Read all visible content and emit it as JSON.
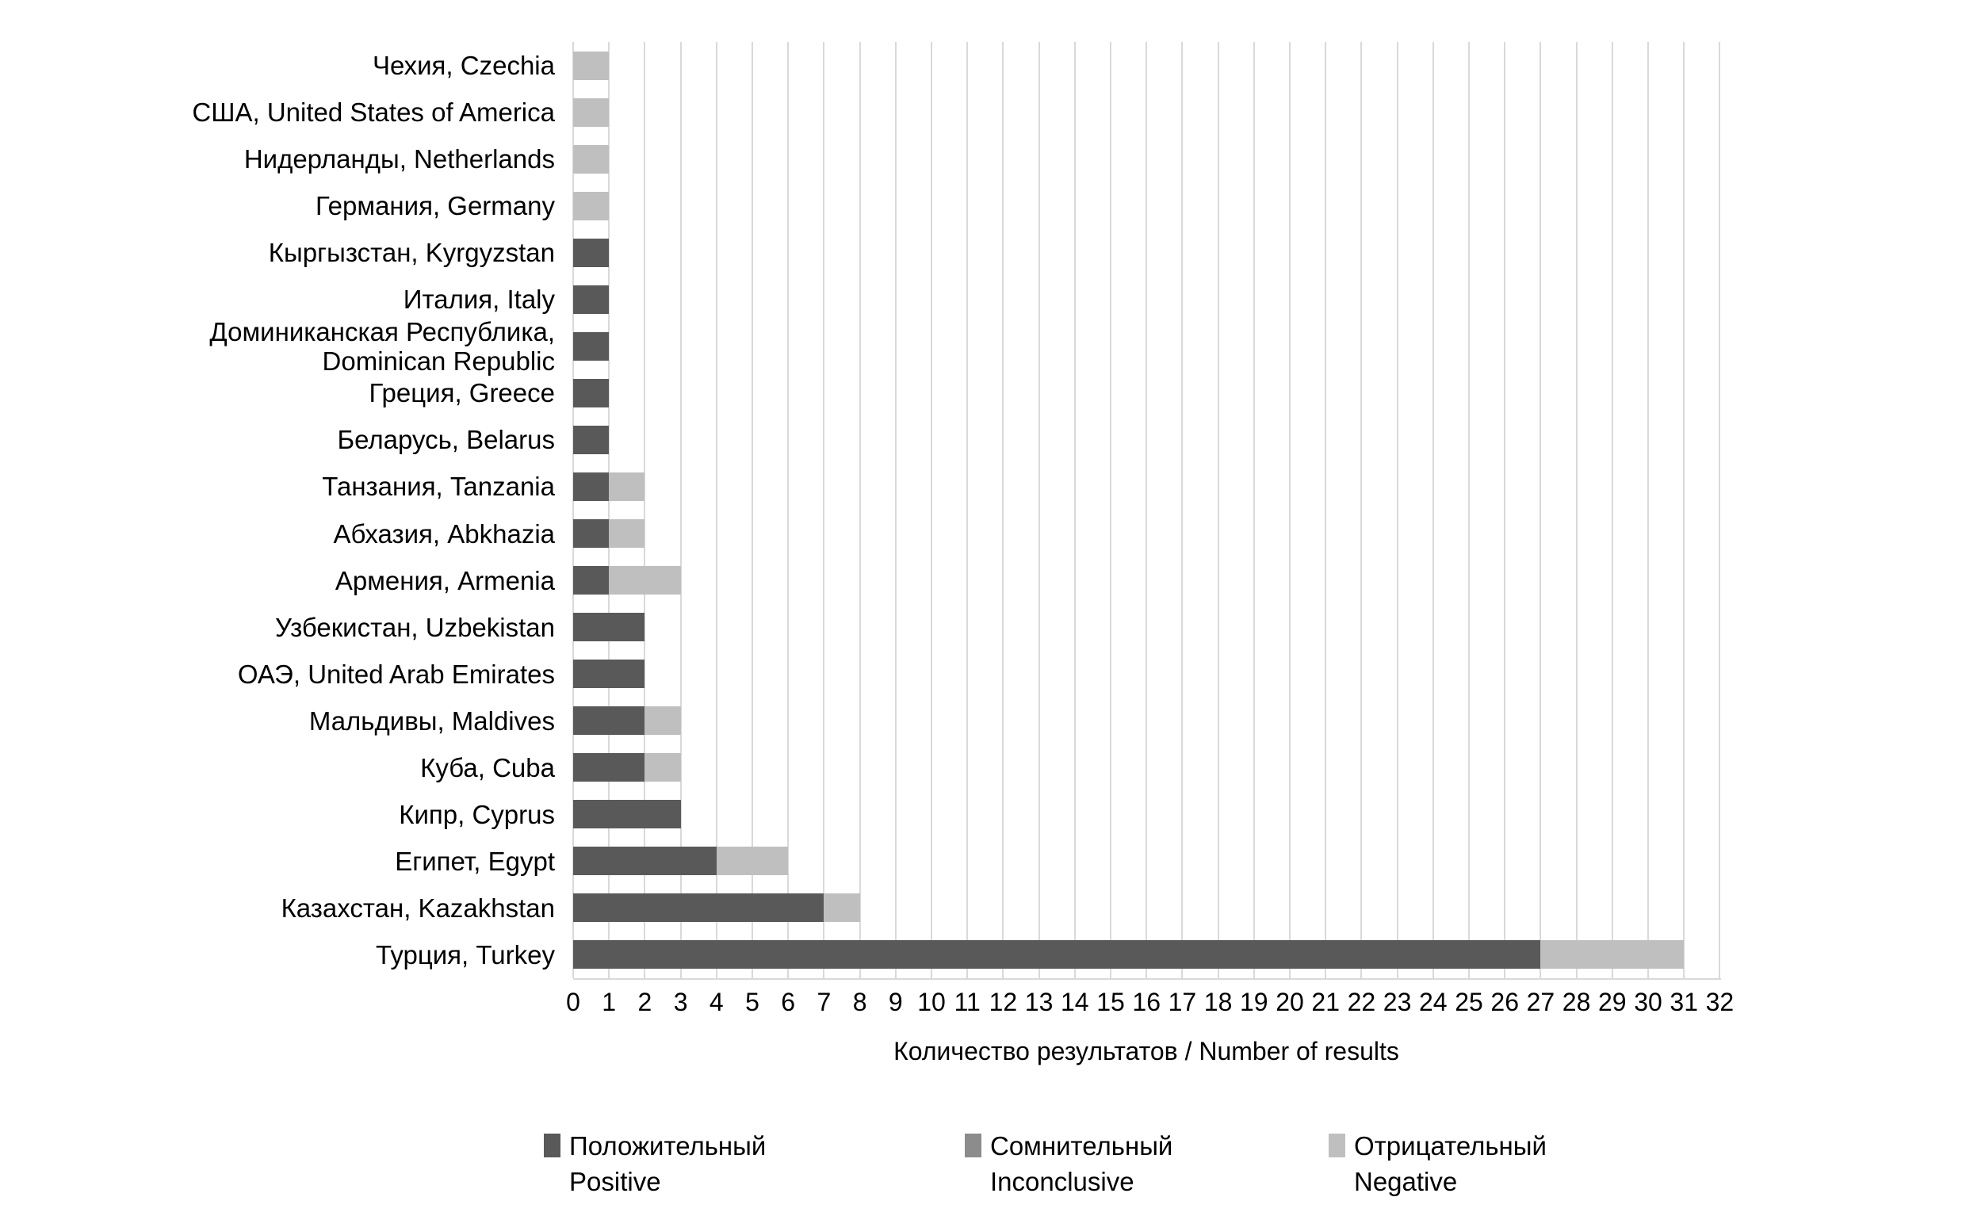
{
  "chart_data": {
    "type": "bar",
    "orientation": "horizontal",
    "stacked": true,
    "title": "",
    "xlabel": "Количество результатов / Number of results",
    "ylabel": "",
    "xlim": [
      0,
      32
    ],
    "xticks": [
      0,
      1,
      2,
      3,
      4,
      5,
      6,
      7,
      8,
      9,
      10,
      11,
      12,
      13,
      14,
      15,
      16,
      17,
      18,
      19,
      20,
      21,
      22,
      23,
      24,
      25,
      26,
      27,
      28,
      29,
      30,
      31,
      32
    ],
    "grid": "vertical",
    "legend_position": "bottom",
    "categories": [
      "Чехия, Czechia",
      "США, United States of America",
      "Нидерланды, Netherlands",
      "Германия, Germany",
      "Кыргызстан, Kyrgyzstan",
      "Италия, Italy",
      "Доминиканская Республика,\nDominican Republic",
      "Греция, Greece",
      "Беларусь, Belarus",
      "Танзания, Tanzania",
      "Абхазия, Abkhazia",
      "Армения, Armenia",
      "Узбекистан, Uzbekistan",
      "ОАЭ, United Arab Emirates",
      "Мальдивы, Maldives",
      "Куба, Cuba",
      "Кипр, Cyprus",
      "Египет, Egypt",
      "Казахстан, Kazakhstan",
      "Турция, Turkey"
    ],
    "series": [
      {
        "name": "Положительный Positive",
        "label_ru": "Положительный",
        "label_en": "Positive",
        "color": "#595959",
        "values": [
          0,
          0,
          0,
          0,
          1,
          1,
          1,
          1,
          1,
          1,
          1,
          1,
          2,
          2,
          2,
          2,
          3,
          4,
          7,
          27
        ]
      },
      {
        "name": "Сомнительный Inconclusive",
        "label_ru": "Сомнительный",
        "label_en": "Inconclusive",
        "color": "#8c8c8c",
        "values": [
          0,
          0,
          0,
          0,
          0,
          0,
          0,
          0,
          0,
          0,
          0,
          0,
          0,
          0,
          0,
          0,
          0,
          0,
          0,
          0
        ]
      },
      {
        "name": "Отрицательный Negative",
        "label_ru": "Отрицательный",
        "label_en": "Negative",
        "color": "#bfbfbf",
        "values": [
          1,
          1,
          1,
          1,
          0,
          0,
          0,
          0,
          0,
          1,
          1,
          2,
          0,
          0,
          1,
          1,
          0,
          2,
          1,
          4
        ]
      }
    ],
    "totals": [
      1,
      1,
      1,
      1,
      1,
      1,
      1,
      1,
      1,
      2,
      2,
      3,
      2,
      2,
      3,
      3,
      3,
      6,
      8,
      31
    ],
    "colors": {
      "gridline": "#d9d9d9",
      "background": "#ffffff",
      "text": "#000000"
    }
  }
}
